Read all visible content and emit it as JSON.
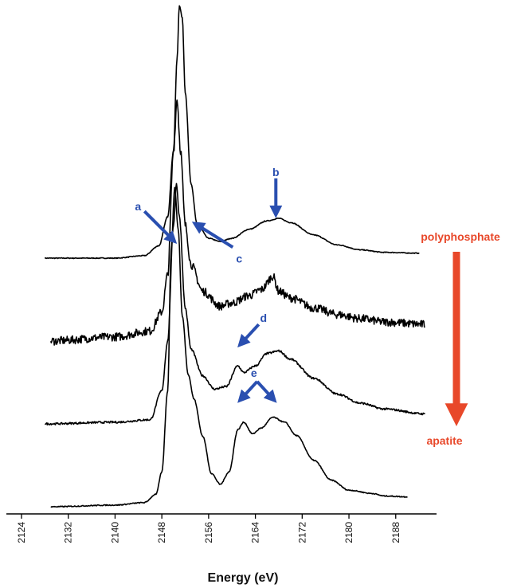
{
  "chart_data": {
    "type": "line",
    "xlabel": "Energy (eV)",
    "ylabel": "",
    "xlim": [
      2124,
      2192
    ],
    "x_ticks": [
      2124,
      2132,
      2140,
      2148,
      2156,
      2164,
      2172,
      2180,
      2188
    ],
    "tick_labels": [
      "2124",
      "2132",
      "2140",
      "2148",
      "2156",
      "2164",
      "2172",
      "2180",
      "2188"
    ],
    "y_ticks_shown": false,
    "grid": false,
    "series": [
      {
        "offset": 3.0,
        "points": [
          [
            2128,
            0.0
          ],
          [
            2140,
            0.0
          ],
          [
            2145,
            0.03
          ],
          [
            2147.5,
            0.15
          ],
          [
            2149,
            0.5
          ],
          [
            2150,
            1.3
          ],
          [
            2150.6,
            2.4
          ],
          [
            2151,
            3.05
          ],
          [
            2151.5,
            2.9
          ],
          [
            2152,
            2.0
          ],
          [
            2153,
            0.9
          ],
          [
            2154,
            0.42
          ],
          [
            2156,
            0.24
          ],
          [
            2158,
            0.2
          ],
          [
            2160,
            0.24
          ],
          [
            2163,
            0.35
          ],
          [
            2166,
            0.45
          ],
          [
            2168,
            0.48
          ],
          [
            2170,
            0.43
          ],
          [
            2174,
            0.28
          ],
          [
            2178,
            0.16
          ],
          [
            2182,
            0.1
          ],
          [
            2186,
            0.07
          ],
          [
            2192,
            0.06
          ]
        ],
        "noise": 0.005
      },
      {
        "offset": 2.0,
        "points": [
          [
            2129,
            0.0
          ],
          [
            2140,
            0.05
          ],
          [
            2146,
            0.12
          ],
          [
            2148,
            0.35
          ],
          [
            2149,
            0.8
          ],
          [
            2150,
            2.3
          ],
          [
            2150.6,
            2.92
          ],
          [
            2151.2,
            2.3
          ],
          [
            2152,
            1.4
          ],
          [
            2153,
            0.92
          ],
          [
            2155,
            0.6
          ],
          [
            2158,
            0.42
          ],
          [
            2160,
            0.46
          ],
          [
            2163,
            0.55
          ],
          [
            2165,
            0.62
          ],
          [
            2167,
            0.78
          ],
          [
            2168,
            0.6
          ],
          [
            2170,
            0.52
          ],
          [
            2174,
            0.4
          ],
          [
            2178,
            0.32
          ],
          [
            2182,
            0.27
          ],
          [
            2186,
            0.23
          ],
          [
            2193,
            0.2
          ]
        ],
        "noise": 0.05
      },
      {
        "offset": 1.0,
        "points": [
          [
            2128,
            0.0
          ],
          [
            2140,
            0.02
          ],
          [
            2146,
            0.05
          ],
          [
            2148,
            0.4
          ],
          [
            2149,
            1.0
          ],
          [
            2150,
            2.4
          ],
          [
            2150.5,
            2.9
          ],
          [
            2151,
            2.5
          ],
          [
            2152,
            1.4
          ],
          [
            2153,
            0.9
          ],
          [
            2155,
            0.58
          ],
          [
            2157,
            0.42
          ],
          [
            2159,
            0.45
          ],
          [
            2161,
            0.7
          ],
          [
            2162,
            0.62
          ],
          [
            2164,
            0.7
          ],
          [
            2166,
            0.85
          ],
          [
            2168,
            0.88
          ],
          [
            2170,
            0.78
          ],
          [
            2174,
            0.55
          ],
          [
            2178,
            0.36
          ],
          [
            2182,
            0.25
          ],
          [
            2186,
            0.18
          ],
          [
            2193,
            0.12
          ]
        ],
        "noise": 0.012
      },
      {
        "offset": 0.0,
        "points": [
          [
            2129,
            0.0
          ],
          [
            2140,
            0.02
          ],
          [
            2145,
            0.05
          ],
          [
            2147,
            0.15
          ],
          [
            2148,
            0.42
          ],
          [
            2149,
            1.4
          ],
          [
            2149.6,
            3.1
          ],
          [
            2150.2,
            3.85
          ],
          [
            2150.8,
            3.35
          ],
          [
            2151.5,
            2.3
          ],
          [
            2152.5,
            1.6
          ],
          [
            2153.5,
            1.3
          ],
          [
            2155,
            0.85
          ],
          [
            2156.5,
            0.4
          ],
          [
            2158,
            0.27
          ],
          [
            2159.5,
            0.42
          ],
          [
            2161,
            0.93
          ],
          [
            2162,
            1.02
          ],
          [
            2163.5,
            0.88
          ],
          [
            2165,
            0.95
          ],
          [
            2167,
            1.08
          ],
          [
            2169,
            1.02
          ],
          [
            2171,
            0.86
          ],
          [
            2174,
            0.56
          ],
          [
            2177,
            0.32
          ],
          [
            2180,
            0.2
          ],
          [
            2184,
            0.16
          ],
          [
            2186,
            0.13
          ],
          [
            2190,
            0.12
          ]
        ],
        "noise": 0.006
      }
    ],
    "annotations": [
      {
        "label": "a",
        "x": 2150.2,
        "y": 3.2
      },
      {
        "label": "b",
        "x": 2167.5,
        "y": 3.52
      },
      {
        "label": "c",
        "x": 2153.6,
        "y": 3.42
      },
      {
        "label": "d",
        "x": 2161.3,
        "y": 1.95
      },
      {
        "label": "e",
        "x": 2164.3,
        "y": 1.3
      }
    ],
    "side_labels": {
      "top": "polyphosphate",
      "bottom": "apatite"
    },
    "colors": {
      "curve": "#000000",
      "annotation": "#2a4fb0",
      "side": "#e8482a",
      "axis": "#000000"
    }
  }
}
